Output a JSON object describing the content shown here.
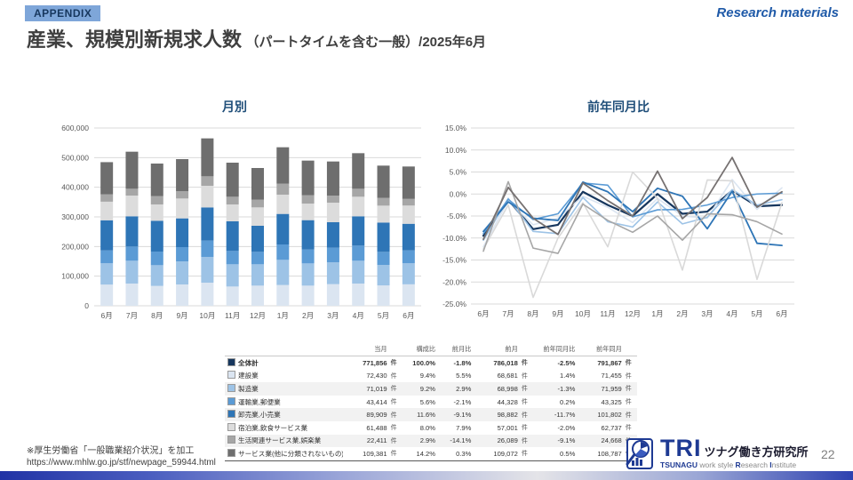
{
  "slide": {
    "badge": "APPENDIX",
    "header_right": "Research materials",
    "title_main": "産業、規模別新規求人数",
    "title_sub": "（パートタイムを含む一般）/2025年6月",
    "footnote_line1": "※厚生労働省「一般職業紹介状況」を加工",
    "footnote_line2": "https://www.mhlw.go.jp/stf/newpage_59944.html",
    "page_number": "22"
  },
  "logo": {
    "tri": "TRI",
    "name_jp": "ツナグ働き方研究所",
    "name_en_parts": [
      "TSUNAGU",
      " work style ",
      "R",
      "esearch ",
      "I",
      "nstitute"
    ]
  },
  "colors": {
    "accent_blue": "#1f4e79",
    "badge_bg": "#7ea6d9",
    "grid": "#d9d9d9",
    "axis_text": "#595959",
    "logo_blue": "#1e3a93"
  },
  "chart_data": [
    {
      "type": "bar",
      "stacked": true,
      "title": "月別",
      "categories": [
        "6月",
        "7月",
        "8月",
        "9月",
        "10月",
        "11月",
        "12月",
        "1月",
        "2月",
        "3月",
        "4月",
        "5月",
        "6月"
      ],
      "series": [
        {
          "name": "建設業",
          "color": "#dbe5f1",
          "values": [
            71455,
            75000,
            67000,
            72000,
            78000,
            65000,
            68000,
            70000,
            68000,
            73000,
            75000,
            68681,
            72430
          ]
        },
        {
          "name": "製造業",
          "color": "#9dc3e6",
          "values": [
            71959,
            77000,
            70000,
            78000,
            87000,
            75000,
            72000,
            85000,
            75000,
            74000,
            77000,
            68998,
            71019
          ]
        },
        {
          "name": "運輸業,郵便業",
          "color": "#5b9bd5",
          "values": [
            43325,
            48000,
            46000,
            48000,
            55000,
            45000,
            42000,
            52000,
            47000,
            49000,
            51000,
            44328,
            43414
          ]
        },
        {
          "name": "卸売業,小売業",
          "color": "#2e75b6",
          "values": [
            101802,
            102000,
            104000,
            97000,
            112000,
            100000,
            88000,
            103000,
            99000,
            86000,
            99000,
            98882,
            89909
          ]
        },
        {
          "name": "宿泊業,飲食サービス業",
          "color": "#dcdcdc",
          "values": [
            62737,
            70000,
            55000,
            67000,
            73000,
            57000,
            62000,
            65000,
            56000,
            66000,
            66000,
            57001,
            61488
          ]
        },
        {
          "name": "生活関連サービス業,娯楽業",
          "color": "#a6a6a6",
          "values": [
            24668,
            23000,
            28000,
            25000,
            32000,
            26000,
            26000,
            37000,
            28000,
            24000,
            27000,
            26089,
            22411
          ]
        },
        {
          "name": "サービス業(他に分類されないもの)",
          "color": "#6e6e6e",
          "values": [
            108787,
            125000,
            110000,
            108000,
            128000,
            115000,
            107000,
            123000,
            117000,
            115000,
            120000,
            109072,
            109381
          ]
        }
      ],
      "ylim": [
        0,
        600000
      ],
      "ytick_step": 100000,
      "grid": true,
      "legend_position": "none"
    },
    {
      "type": "line",
      "title": "前年同月比",
      "categories": [
        "6月",
        "7月",
        "8月",
        "9月",
        "10月",
        "11月",
        "12月",
        "1月",
        "2月",
        "3月",
        "4月",
        "5月",
        "6月"
      ],
      "unit": "%",
      "series": [
        {
          "name": "全体計",
          "color": "#17375e",
          "width": 2.2,
          "values": [
            -9.5,
            -1.3,
            -8.0,
            -7.0,
            0.5,
            -2.5,
            -5.0,
            0.0,
            -4.5,
            -4.0,
            0.8,
            -2.8,
            -2.5
          ]
        },
        {
          "name": "建設業",
          "color": "#dbe5f1",
          "width": 1.6,
          "values": [
            -12.0,
            -1.5,
            -7.0,
            -5.5,
            -0.5,
            -3.0,
            -6.5,
            -1.0,
            -5.0,
            -5.5,
            3.3,
            -3.5,
            1.4
          ]
        },
        {
          "name": "製造業",
          "color": "#9dc3e6",
          "width": 1.6,
          "values": [
            -10.5,
            -1.0,
            -8.5,
            -9.0,
            -0.8,
            -6.3,
            -7.5,
            -1.8,
            -6.8,
            -5.3,
            1.0,
            -2.5,
            -1.3
          ]
        },
        {
          "name": "運輸業,郵便業",
          "color": "#5b9bd5",
          "width": 1.6,
          "values": [
            -9.0,
            -1.2,
            -5.8,
            -4.5,
            2.5,
            2.0,
            -5.2,
            -3.6,
            -3.5,
            -2.5,
            -0.8,
            0.0,
            0.2
          ]
        },
        {
          "name": "卸売業,小売業",
          "color": "#2e75b6",
          "width": 1.8,
          "values": [
            -8.5,
            -1.8,
            -5.5,
            -6.0,
            2.7,
            0.5,
            -4.0,
            1.3,
            -0.5,
            -7.9,
            0.6,
            -11.2,
            -11.7
          ]
        },
        {
          "name": "宿泊業,飲食サービス業",
          "color": "#d9d9d9",
          "width": 1.6,
          "values": [
            -12.5,
            -2.5,
            -23.5,
            -10.0,
            -2.0,
            -12.0,
            5.0,
            -1.0,
            -17.3,
            3.2,
            3.0,
            -19.4,
            -2.0
          ]
        },
        {
          "name": "生活関連サービス業,娯楽業",
          "color": "#a6a6a6",
          "width": 1.6,
          "values": [
            -13.0,
            2.8,
            -12.3,
            -13.5,
            -2.3,
            -6.0,
            -8.7,
            -5.0,
            -10.5,
            -4.5,
            -4.7,
            -6.3,
            -9.1
          ]
        },
        {
          "name": "サービス業(他に分類されないもの)",
          "color": "#767171",
          "width": 1.8,
          "values": [
            -10.3,
            1.5,
            -5.5,
            -9.2,
            2.5,
            -1.5,
            -5.0,
            5.2,
            -5.6,
            -0.8,
            8.3,
            -3.0,
            0.5
          ]
        }
      ],
      "ylim": [
        -25,
        15
      ],
      "ytick_step": 5,
      "grid": true,
      "legend_position": "none"
    }
  ],
  "table": {
    "columns": [
      "",
      "当月",
      "",
      "構成比",
      "前月比",
      "前月",
      "",
      "前年同月比",
      "前年同月",
      ""
    ],
    "rows": [
      {
        "label": "全体計",
        "swatch": "#17375e",
        "bold": true,
        "cells": [
          "771,856",
          "件",
          "100.0%",
          "-1.8%",
          "786,018",
          "件",
          "-2.5%",
          "791,867",
          "件"
        ]
      },
      {
        "label": "建設業",
        "swatch": "#dbe5f1",
        "bold": false,
        "cells": [
          "72,430",
          "件",
          "9.4%",
          "5.5%",
          "68,681",
          "件",
          "1.4%",
          "71,455",
          "件"
        ]
      },
      {
        "label": "製造業",
        "swatch": "#9dc3e6",
        "bold": false,
        "cells": [
          "71,019",
          "件",
          "9.2%",
          "2.9%",
          "68,998",
          "件",
          "-1.3%",
          "71,959",
          "件"
        ]
      },
      {
        "label": "運輸業,郵便業",
        "swatch": "#5b9bd5",
        "bold": false,
        "cells": [
          "43,414",
          "件",
          "5.6%",
          "-2.1%",
          "44,328",
          "件",
          "0.2%",
          "43,325",
          "件"
        ]
      },
      {
        "label": "卸売業,小売業",
        "swatch": "#2e75b6",
        "bold": false,
        "cells": [
          "89,909",
          "件",
          "11.6%",
          "-9.1%",
          "98,882",
          "件",
          "-11.7%",
          "101,802",
          "件"
        ]
      },
      {
        "label": "宿泊業,飲食サービス業",
        "swatch": "#dcdcdc",
        "bold": false,
        "cells": [
          "61,488",
          "件",
          "8.0%",
          "7.9%",
          "57,001",
          "件",
          "-2.0%",
          "62,737",
          "件"
        ]
      },
      {
        "label": "生活関連サービス業,娯楽業",
        "swatch": "#a6a6a6",
        "bold": false,
        "cells": [
          "22,411",
          "件",
          "2.9%",
          "-14.1%",
          "26,089",
          "件",
          "-9.1%",
          "24,668",
          "件"
        ]
      },
      {
        "label": "サービス業(他に分類されないもの)",
        "swatch": "#6e6e6e",
        "bold": false,
        "cells": [
          "109,381",
          "件",
          "14.2%",
          "0.3%",
          "109,072",
          "件",
          "0.5%",
          "108,787",
          "件"
        ]
      }
    ]
  }
}
